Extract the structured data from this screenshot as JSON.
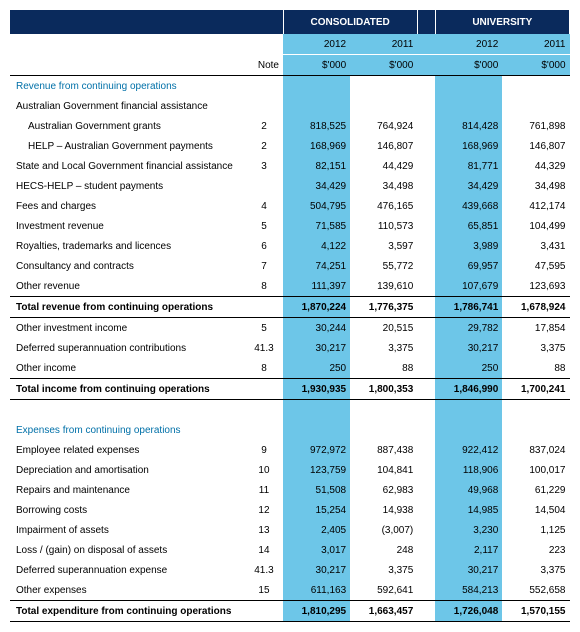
{
  "headers": {
    "group1": "CONSOLIDATED",
    "group2": "UNIVERSITY",
    "years": [
      "2012",
      "2011",
      "2012",
      "2011"
    ],
    "units": "$'000",
    "note": "Note"
  },
  "colors": {
    "dark": "#0a2a5c",
    "light": "#6dc6e8",
    "link": "#0070a8"
  },
  "sections": [
    {
      "title": "Revenue from continuing operations",
      "rows": [
        {
          "label": "Australian Government financial assistance",
          "note": "",
          "v": [
            "",
            "",
            "",
            ""
          ],
          "plain": true
        },
        {
          "label": "Australian Government grants",
          "note": "2",
          "v": [
            "818,525",
            "764,924",
            "814,428",
            "761,898"
          ],
          "indent": true
        },
        {
          "label": "HELP – Australian Government payments",
          "note": "2",
          "v": [
            "168,969",
            "146,807",
            "168,969",
            "146,807"
          ],
          "indent": true
        },
        {
          "label": "State and Local Government financial assistance",
          "note": "3",
          "v": [
            "82,151",
            "44,429",
            "81,771",
            "44,329"
          ]
        },
        {
          "label": "HECS-HELP – student payments",
          "note": "",
          "v": [
            "34,429",
            "34,498",
            "34,429",
            "34,498"
          ]
        },
        {
          "label": "Fees and charges",
          "note": "4",
          "v": [
            "504,795",
            "476,165",
            "439,668",
            "412,174"
          ]
        },
        {
          "label": "Investment revenue",
          "note": "5",
          "v": [
            "71,585",
            "110,573",
            "65,851",
            "104,499"
          ]
        },
        {
          "label": "Royalties, trademarks and licences",
          "note": "6",
          "v": [
            "4,122",
            "3,597",
            "3,989",
            "3,431"
          ]
        },
        {
          "label": "Consultancy and contracts",
          "note": "7",
          "v": [
            "74,251",
            "55,772",
            "69,957",
            "47,595"
          ]
        },
        {
          "label": "Other revenue",
          "note": "8",
          "v": [
            "111,397",
            "139,610",
            "107,679",
            "123,693"
          ]
        }
      ],
      "total": {
        "label": "Total revenue from continuing operations",
        "v": [
          "1,870,224",
          "1,776,375",
          "1,786,741",
          "1,678,924"
        ]
      },
      "after": [
        {
          "label": "Other investment income",
          "note": "5",
          "v": [
            "30,244",
            "20,515",
            "29,782",
            "17,854"
          ]
        },
        {
          "label": "Deferred superannuation contributions",
          "note": "41.3",
          "v": [
            "30,217",
            "3,375",
            "30,217",
            "3,375"
          ]
        },
        {
          "label": "Other income",
          "note": "8",
          "v": [
            "250",
            "88",
            "250",
            "88"
          ]
        }
      ],
      "total2": {
        "label": "Total income from continuing operations",
        "v": [
          "1,930,935",
          "1,800,353",
          "1,846,990",
          "1,700,241"
        ]
      }
    },
    {
      "title": "Expenses from continuing operations",
      "rows": [
        {
          "label": "Employee related expenses",
          "note": "9",
          "v": [
            "972,972",
            "887,438",
            "922,412",
            "837,024"
          ]
        },
        {
          "label": "Depreciation and amortisation",
          "note": "10",
          "v": [
            "123,759",
            "104,841",
            "118,906",
            "100,017"
          ]
        },
        {
          "label": "Repairs and maintenance",
          "note": "11",
          "v": [
            "51,508",
            "62,983",
            "49,968",
            "61,229"
          ]
        },
        {
          "label": "Borrowing costs",
          "note": "12",
          "v": [
            "15,254",
            "14,938",
            "14,985",
            "14,504"
          ]
        },
        {
          "label": "Impairment of assets",
          "note": "13",
          "v": [
            "2,405",
            "(3,007)",
            "3,230",
            "1,125"
          ]
        },
        {
          "label": "Loss / (gain) on disposal of assets",
          "note": "14",
          "v": [
            "3,017",
            "248",
            "2,117",
            "223"
          ]
        },
        {
          "label": "Deferred superannuation expense",
          "note": "41.3",
          "v": [
            "30,217",
            "3,375",
            "30,217",
            "3,375"
          ]
        },
        {
          "label": "Other expenses",
          "note": "15",
          "v": [
            "611,163",
            "592,641",
            "584,213",
            "552,658"
          ]
        }
      ],
      "total": {
        "label": "Total expenditure from continuing operations",
        "v": [
          "1,810,295",
          "1,663,457",
          "1,726,048",
          "1,570,155"
        ]
      }
    }
  ]
}
